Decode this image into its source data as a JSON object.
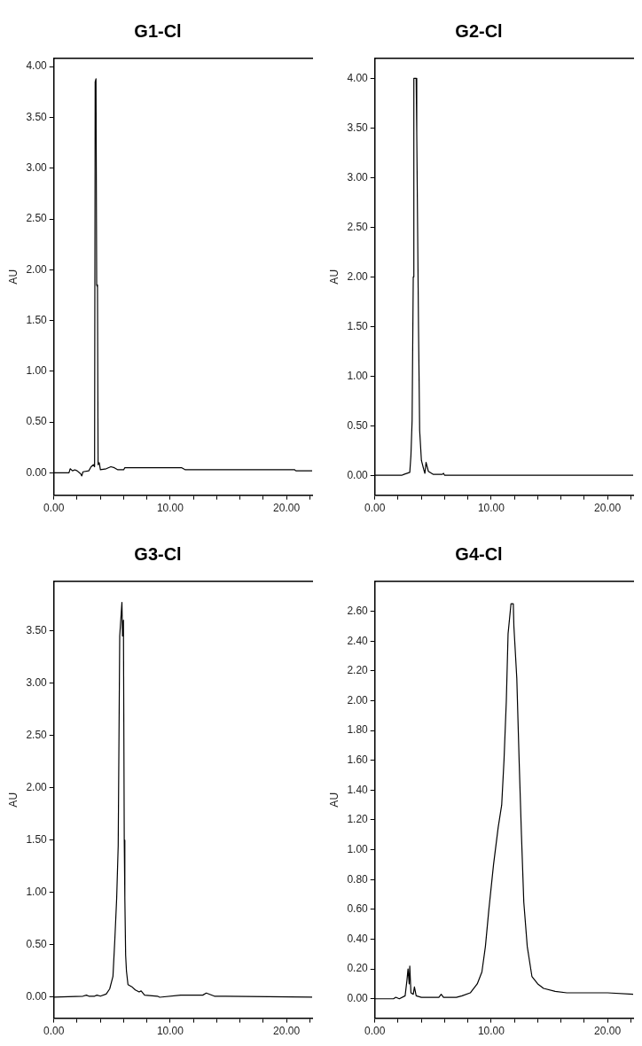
{
  "chart_data": [
    {
      "type": "line",
      "title": "G1-Cl",
      "ylabel": "AU",
      "color": "#000000",
      "marker": "none",
      "line_style": "solid",
      "grid": false,
      "legend": false,
      "x": [
        0,
        1.3,
        1.4,
        1.6,
        1.8,
        2.0,
        2.3,
        2.4,
        2.5,
        3.0,
        3.2,
        3.4,
        3.5,
        3.55,
        3.62,
        3.68,
        3.75,
        3.8,
        3.9,
        4.0,
        4.5,
        4.9,
        5.2,
        5.5,
        6.0,
        6.1,
        11.0,
        11.3,
        20.7,
        20.8,
        22.2
      ],
      "values": [
        0,
        0,
        0.04,
        0.02,
        0.03,
        0.02,
        -0.01,
        -0.03,
        0.01,
        0.02,
        0.06,
        0.08,
        0.06,
        3.85,
        3.88,
        1.85,
        1.83,
        0.08,
        0.1,
        0.03,
        0.04,
        0.06,
        0.05,
        0.03,
        0.03,
        0.05,
        0.05,
        0.03,
        0.03,
        0.02,
        0.02
      ],
      "xlim": [
        0,
        22.2
      ],
      "ylim": [
        -0.22,
        4.08
      ],
      "xticks": [
        {
          "value": 0,
          "label": "0.00"
        },
        {
          "value": 2,
          "label": null
        },
        {
          "value": 4,
          "label": null
        },
        {
          "value": 6,
          "label": null
        },
        {
          "value": 8,
          "label": null
        },
        {
          "value": 10,
          "label": "10.00"
        },
        {
          "value": 12,
          "label": null
        },
        {
          "value": 14,
          "label": null
        },
        {
          "value": 16,
          "label": null
        },
        {
          "value": 18,
          "label": null
        },
        {
          "value": 20,
          "label": "20.00"
        },
        {
          "value": 22,
          "label": null
        }
      ],
      "yticks": [
        {
          "value": 0,
          "label": "0.00"
        },
        {
          "value": 0.5,
          "label": "0.50"
        },
        {
          "value": 1,
          "label": "1.00"
        },
        {
          "value": 1.5,
          "label": "1.50"
        },
        {
          "value": 2,
          "label": "2.00"
        },
        {
          "value": 2.5,
          "label": "2.50"
        },
        {
          "value": 3,
          "label": "3.00"
        },
        {
          "value": 3.5,
          "label": "3.50"
        },
        {
          "value": 4,
          "label": "4.00"
        }
      ]
    },
    {
      "type": "line",
      "title": "G2-Cl",
      "ylabel": "AU",
      "color": "#000000",
      "marker": "none",
      "line_style": "solid",
      "grid": false,
      "legend": false,
      "x": [
        0,
        2.3,
        2.5,
        3.0,
        3.1,
        3.2,
        3.3,
        3.35,
        3.55,
        3.6,
        3.75,
        3.85,
        4.0,
        4.2,
        4.3,
        4.4,
        4.6,
        5.0,
        5.8,
        5.9,
        6.0,
        22.2
      ],
      "values": [
        0,
        0,
        0.01,
        0.03,
        0.2,
        0.55,
        2.0,
        4.0,
        4.0,
        3.45,
        1.5,
        0.45,
        0.15,
        0.06,
        0.02,
        0.13,
        0.04,
        0.01,
        0.01,
        0.02,
        0,
        0
      ],
      "xlim": [
        0,
        22.2
      ],
      "ylim": [
        -0.2,
        4.2
      ],
      "xticks": [
        {
          "value": 0,
          "label": "0.00"
        },
        {
          "value": 2,
          "label": null
        },
        {
          "value": 4,
          "label": null
        },
        {
          "value": 6,
          "label": null
        },
        {
          "value": 8,
          "label": null
        },
        {
          "value": 10,
          "label": "10.00"
        },
        {
          "value": 12,
          "label": null
        },
        {
          "value": 14,
          "label": null
        },
        {
          "value": 16,
          "label": null
        },
        {
          "value": 18,
          "label": null
        },
        {
          "value": 20,
          "label": "20.00"
        },
        {
          "value": 22,
          "label": null
        }
      ],
      "yticks": [
        {
          "value": 0,
          "label": "0.00"
        },
        {
          "value": 0.5,
          "label": "0.50"
        },
        {
          "value": 1,
          "label": "1.00"
        },
        {
          "value": 1.5,
          "label": "1.50"
        },
        {
          "value": 2,
          "label": "2.00"
        },
        {
          "value": 2.5,
          "label": "2.50"
        },
        {
          "value": 3,
          "label": "3.00"
        },
        {
          "value": 3.5,
          "label": "3.50"
        },
        {
          "value": 4,
          "label": "4.00"
        }
      ]
    },
    {
      "type": "line",
      "title": "G3-Cl",
      "ylabel": "AU",
      "color": "#000000",
      "marker": "none",
      "line_style": "solid",
      "grid": false,
      "legend": false,
      "x": [
        0,
        2.5,
        2.8,
        3.0,
        3.5,
        3.7,
        4.0,
        4.5,
        4.8,
        5.08,
        5.24,
        5.4,
        5.53,
        5.66,
        5.85,
        5.9,
        5.98,
        6.05,
        6.1,
        6.17,
        6.24,
        6.37,
        6.7,
        7.0,
        7.33,
        7.5,
        7.8,
        8.9,
        9.1,
        10.9,
        12.8,
        13.1,
        13.8,
        22.2
      ],
      "values": [
        0,
        0.01,
        0.02,
        0.01,
        0.01,
        0.02,
        0.01,
        0.03,
        0.08,
        0.2,
        0.55,
        0.95,
        1.45,
        3.45,
        3.77,
        3.45,
        3.6,
        1.5,
        0.95,
        0.4,
        0.25,
        0.12,
        0.1,
        0.07,
        0.05,
        0.06,
        0.02,
        0.01,
        0,
        0.02,
        0.02,
        0.04,
        0.01,
        0
      ],
      "xlim": [
        0,
        22.2
      ],
      "ylim": [
        -0.2,
        3.97
      ],
      "xticks": [
        {
          "value": 0,
          "label": "0.00"
        },
        {
          "value": 2,
          "label": null
        },
        {
          "value": 4,
          "label": null
        },
        {
          "value": 6,
          "label": null
        },
        {
          "value": 8,
          "label": null
        },
        {
          "value": 10,
          "label": "10.00"
        },
        {
          "value": 12,
          "label": null
        },
        {
          "value": 14,
          "label": null
        },
        {
          "value": 16,
          "label": null
        },
        {
          "value": 18,
          "label": null
        },
        {
          "value": 20,
          "label": "20.00"
        },
        {
          "value": 22,
          "label": null
        }
      ],
      "yticks": [
        {
          "value": 0,
          "label": "0.00"
        },
        {
          "value": 0.5,
          "label": "0.50"
        },
        {
          "value": 1,
          "label": "1.00"
        },
        {
          "value": 1.5,
          "label": "1.50"
        },
        {
          "value": 2,
          "label": "2.00"
        },
        {
          "value": 2.5,
          "label": "2.50"
        },
        {
          "value": 3,
          "label": "3.00"
        },
        {
          "value": 3.5,
          "label": "3.50"
        }
      ]
    },
    {
      "type": "line",
      "title": "G4-Cl",
      "ylabel": "AU",
      "color": "#000000",
      "marker": "none",
      "line_style": "solid",
      "grid": false,
      "legend": false,
      "x": [
        0,
        1.6,
        1.8,
        2.1,
        2.6,
        2.75,
        2.85,
        2.95,
        3.0,
        3.1,
        3.3,
        3.4,
        3.55,
        4.0,
        5.5,
        5.7,
        5.9,
        7.0,
        7.5,
        8.2,
        8.8,
        9.2,
        9.5,
        9.8,
        10.2,
        10.6,
        10.9,
        11.1,
        11.3,
        11.45,
        11.7,
        11.9,
        11.95,
        12.2,
        12.4,
        12.6,
        12.8,
        13.1,
        13.5,
        14.0,
        14.5,
        15.5,
        16.5,
        20.0,
        22.2
      ],
      "values": [
        0,
        0,
        0.01,
        0,
        0.02,
        0.12,
        0.2,
        0.1,
        0.22,
        0.04,
        0.03,
        0.08,
        0.02,
        0.01,
        0.01,
        0.03,
        0.01,
        0.01,
        0.02,
        0.04,
        0.1,
        0.18,
        0.35,
        0.6,
        0.9,
        1.15,
        1.3,
        1.6,
        2.0,
        2.45,
        2.65,
        2.65,
        2.5,
        2.15,
        1.6,
        1.1,
        0.65,
        0.35,
        0.15,
        0.1,
        0.07,
        0.05,
        0.04,
        0.04,
        0.03
      ],
      "xlim": [
        0,
        22.2
      ],
      "ylim": [
        -0.13,
        2.8
      ],
      "xticks": [
        {
          "value": 0,
          "label": "0.00"
        },
        {
          "value": 2,
          "label": null
        },
        {
          "value": 4,
          "label": null
        },
        {
          "value": 6,
          "label": null
        },
        {
          "value": 8,
          "label": null
        },
        {
          "value": 10,
          "label": "10.00"
        },
        {
          "value": 12,
          "label": null
        },
        {
          "value": 14,
          "label": null
        },
        {
          "value": 16,
          "label": null
        },
        {
          "value": 18,
          "label": null
        },
        {
          "value": 20,
          "label": "20.00"
        },
        {
          "value": 22,
          "label": null
        }
      ],
      "yticks": [
        {
          "value": 0,
          "label": "0.00"
        },
        {
          "value": 0.2,
          "label": "0.20"
        },
        {
          "value": 0.4,
          "label": "0.40"
        },
        {
          "value": 0.6,
          "label": "0.60"
        },
        {
          "value": 0.8,
          "label": "0.80"
        },
        {
          "value": 1,
          "label": "1.00"
        },
        {
          "value": 1.2,
          "label": "1.20"
        },
        {
          "value": 1.4,
          "label": "1.40"
        },
        {
          "value": 1.6,
          "label": "1.60"
        },
        {
          "value": 1.8,
          "label": "1.80"
        },
        {
          "value": 2,
          "label": "2.00"
        },
        {
          "value": 2.2,
          "label": "2.20"
        },
        {
          "value": 2.4,
          "label": "2.40"
        },
        {
          "value": 2.6,
          "label": "2.60"
        }
      ]
    }
  ]
}
